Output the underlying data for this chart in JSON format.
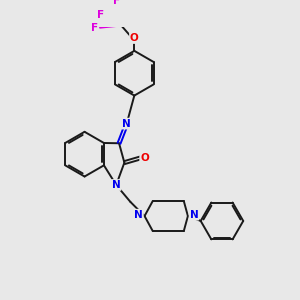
{
  "bg_color": "#e8e8e8",
  "bond_color": "#1a1a1a",
  "N_color": "#0000ee",
  "O_color": "#ee0000",
  "F_color": "#dd00dd",
  "lw": 1.4,
  "xlim": [
    0,
    10
  ],
  "ylim": [
    0,
    10
  ]
}
